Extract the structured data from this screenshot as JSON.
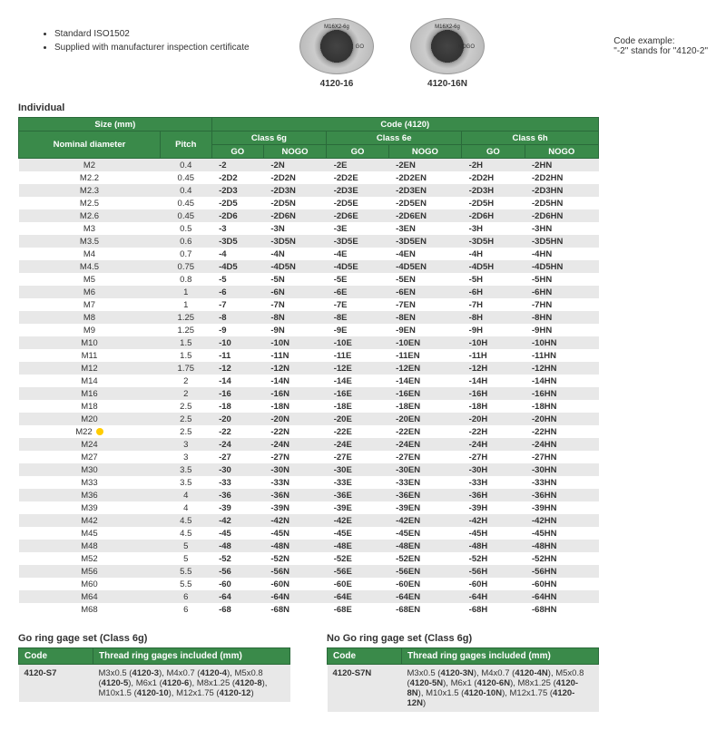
{
  "bullets": [
    "Standard ISO1502",
    "Supplied with manufacturer inspection certificate"
  ],
  "products": [
    {
      "spec": "M16X2-6g",
      "type": "GO",
      "code": "4120-16"
    },
    {
      "spec": "M16X2-6g",
      "type": "NOGO",
      "code": "4120-16N"
    }
  ],
  "code_example": {
    "label": "Code example:",
    "text": "\"-2\" stands for \"4120-2\""
  },
  "individual_label": "Individual",
  "header": {
    "size": "Size (mm)",
    "code": "Code (4120)",
    "nominal": "Nominal diameter",
    "pitch": "Pitch",
    "classes": [
      "Class 6g",
      "Class 6e",
      "Class 6h"
    ],
    "go": "GO",
    "nogo": "NOGO"
  },
  "rows": [
    {
      "nom": "M2",
      "pitch": "0.4",
      "c": [
        "-2",
        "-2N",
        "-2E",
        "-2EN",
        "-2H",
        "-2HN"
      ]
    },
    {
      "nom": "M2.2",
      "pitch": "0.45",
      "c": [
        "-2D2",
        "-2D2N",
        "-2D2E",
        "-2D2EN",
        "-2D2H",
        "-2D2HN"
      ]
    },
    {
      "nom": "M2.3",
      "pitch": "0.4",
      "c": [
        "-2D3",
        "-2D3N",
        "-2D3E",
        "-2D3EN",
        "-2D3H",
        "-2D3HN"
      ]
    },
    {
      "nom": "M2.5",
      "pitch": "0.45",
      "c": [
        "-2D5",
        "-2D5N",
        "-2D5E",
        "-2D5EN",
        "-2D5H",
        "-2D5HN"
      ]
    },
    {
      "nom": "M2.6",
      "pitch": "0.45",
      "c": [
        "-2D6",
        "-2D6N",
        "-2D6E",
        "-2D6EN",
        "-2D6H",
        "-2D6HN"
      ]
    },
    {
      "nom": "M3",
      "pitch": "0.5",
      "c": [
        "-3",
        "-3N",
        "-3E",
        "-3EN",
        "-3H",
        "-3HN"
      ]
    },
    {
      "nom": "M3.5",
      "pitch": "0.6",
      "c": [
        "-3D5",
        "-3D5N",
        "-3D5E",
        "-3D5EN",
        "-3D5H",
        "-3D5HN"
      ]
    },
    {
      "nom": "M4",
      "pitch": "0.7",
      "c": [
        "-4",
        "-4N",
        "-4E",
        "-4EN",
        "-4H",
        "-4HN"
      ]
    },
    {
      "nom": "M4.5",
      "pitch": "0.75",
      "c": [
        "-4D5",
        "-4D5N",
        "-4D5E",
        "-4D5EN",
        "-4D5H",
        "-4D5HN"
      ]
    },
    {
      "nom": "M5",
      "pitch": "0.8",
      "c": [
        "-5",
        "-5N",
        "-5E",
        "-5EN",
        "-5H",
        "-5HN"
      ]
    },
    {
      "nom": "M6",
      "pitch": "1",
      "c": [
        "-6",
        "-6N",
        "-6E",
        "-6EN",
        "-6H",
        "-6HN"
      ]
    },
    {
      "nom": "M7",
      "pitch": "1",
      "c": [
        "-7",
        "-7N",
        "-7E",
        "-7EN",
        "-7H",
        "-7HN"
      ]
    },
    {
      "nom": "M8",
      "pitch": "1.25",
      "c": [
        "-8",
        "-8N",
        "-8E",
        "-8EN",
        "-8H",
        "-8HN"
      ]
    },
    {
      "nom": "M9",
      "pitch": "1.25",
      "c": [
        "-9",
        "-9N",
        "-9E",
        "-9EN",
        "-9H",
        "-9HN"
      ]
    },
    {
      "nom": "M10",
      "pitch": "1.5",
      "c": [
        "-10",
        "-10N",
        "-10E",
        "-10EN",
        "-10H",
        "-10HN"
      ]
    },
    {
      "nom": "M11",
      "pitch": "1.5",
      "c": [
        "-11",
        "-11N",
        "-11E",
        "-11EN",
        "-11H",
        "-11HN"
      ]
    },
    {
      "nom": "M12",
      "pitch": "1.75",
      "c": [
        "-12",
        "-12N",
        "-12E",
        "-12EN",
        "-12H",
        "-12HN"
      ]
    },
    {
      "nom": "M14",
      "pitch": "2",
      "c": [
        "-14",
        "-14N",
        "-14E",
        "-14EN",
        "-14H",
        "-14HN"
      ]
    },
    {
      "nom": "M16",
      "pitch": "2",
      "c": [
        "-16",
        "-16N",
        "-16E",
        "-16EN",
        "-16H",
        "-16HN"
      ]
    },
    {
      "nom": "M18",
      "pitch": "2.5",
      "c": [
        "-18",
        "-18N",
        "-18E",
        "-18EN",
        "-18H",
        "-18HN"
      ]
    },
    {
      "nom": "M20",
      "pitch": "2.5",
      "c": [
        "-20",
        "-20N",
        "-20E",
        "-20EN",
        "-20H",
        "-20HN"
      ]
    },
    {
      "nom": "M22",
      "pitch": "2.5",
      "c": [
        "-22",
        "-22N",
        "-22E",
        "-22EN",
        "-22H",
        "-22HN"
      ],
      "dot": true
    },
    {
      "nom": "M24",
      "pitch": "3",
      "c": [
        "-24",
        "-24N",
        "-24E",
        "-24EN",
        "-24H",
        "-24HN"
      ]
    },
    {
      "nom": "M27",
      "pitch": "3",
      "c": [
        "-27",
        "-27N",
        "-27E",
        "-27EN",
        "-27H",
        "-27HN"
      ]
    },
    {
      "nom": "M30",
      "pitch": "3.5",
      "c": [
        "-30",
        "-30N",
        "-30E",
        "-30EN",
        "-30H",
        "-30HN"
      ]
    },
    {
      "nom": "M33",
      "pitch": "3.5",
      "c": [
        "-33",
        "-33N",
        "-33E",
        "-33EN",
        "-33H",
        "-33HN"
      ]
    },
    {
      "nom": "M36",
      "pitch": "4",
      "c": [
        "-36",
        "-36N",
        "-36E",
        "-36EN",
        "-36H",
        "-36HN"
      ]
    },
    {
      "nom": "M39",
      "pitch": "4",
      "c": [
        "-39",
        "-39N",
        "-39E",
        "-39EN",
        "-39H",
        "-39HN"
      ]
    },
    {
      "nom": "M42",
      "pitch": "4.5",
      "c": [
        "-42",
        "-42N",
        "-42E",
        "-42EN",
        "-42H",
        "-42HN"
      ]
    },
    {
      "nom": "M45",
      "pitch": "4.5",
      "c": [
        "-45",
        "-45N",
        "-45E",
        "-45EN",
        "-45H",
        "-45HN"
      ]
    },
    {
      "nom": "M48",
      "pitch": "5",
      "c": [
        "-48",
        "-48N",
        "-48E",
        "-48EN",
        "-48H",
        "-48HN"
      ]
    },
    {
      "nom": "M52",
      "pitch": "5",
      "c": [
        "-52",
        "-52N",
        "-52E",
        "-52EN",
        "-52H",
        "-52HN"
      ]
    },
    {
      "nom": "M56",
      "pitch": "5.5",
      "c": [
        "-56",
        "-56N",
        "-56E",
        "-56EN",
        "-56H",
        "-56HN"
      ]
    },
    {
      "nom": "M60",
      "pitch": "5.5",
      "c": [
        "-60",
        "-60N",
        "-60E",
        "-60EN",
        "-60H",
        "-60HN"
      ]
    },
    {
      "nom": "M64",
      "pitch": "6",
      "c": [
        "-64",
        "-64N",
        "-64E",
        "-64EN",
        "-64H",
        "-64HN"
      ]
    },
    {
      "nom": "M68",
      "pitch": "6",
      "c": [
        "-68",
        "-68N",
        "-68E",
        "-68EN",
        "-68H",
        "-68HN"
      ]
    }
  ],
  "sets": [
    {
      "title": "Go ring gage set (Class 6g)",
      "code_hdr": "Code",
      "inc_hdr": "Thread ring gages included (mm)",
      "code": "4120-S7",
      "items": "M3x0.5 (<b>4120-3</b>), M4x0.7 (<b>4120-4</b>), M5x0.8 (<b>4120-5</b>), M6x1 (<b>4120-6</b>), M8x1.25 (<b>4120-8</b>), M10x1.5 (<b>4120-10</b>), M12x1.75 (<b>4120-12</b>)"
    },
    {
      "title": "No Go ring gage set (Class 6g)",
      "code_hdr": "Code",
      "inc_hdr": "Thread ring gages included (mm)",
      "code": "4120-S7N",
      "items": "M3x0.5 (<b>4120-3N</b>), M4x0.7 (<b>4120-4N</b>), M5x0.8 (<b>4120-5N</b>), M6x1 (<b>4120-6N</b>), M8x1.25 (<b>4120-8N</b>), M10x1.5 (<b>4120-10N</b>), M12x1.75 (<b>4120-12N</b>)"
    }
  ]
}
